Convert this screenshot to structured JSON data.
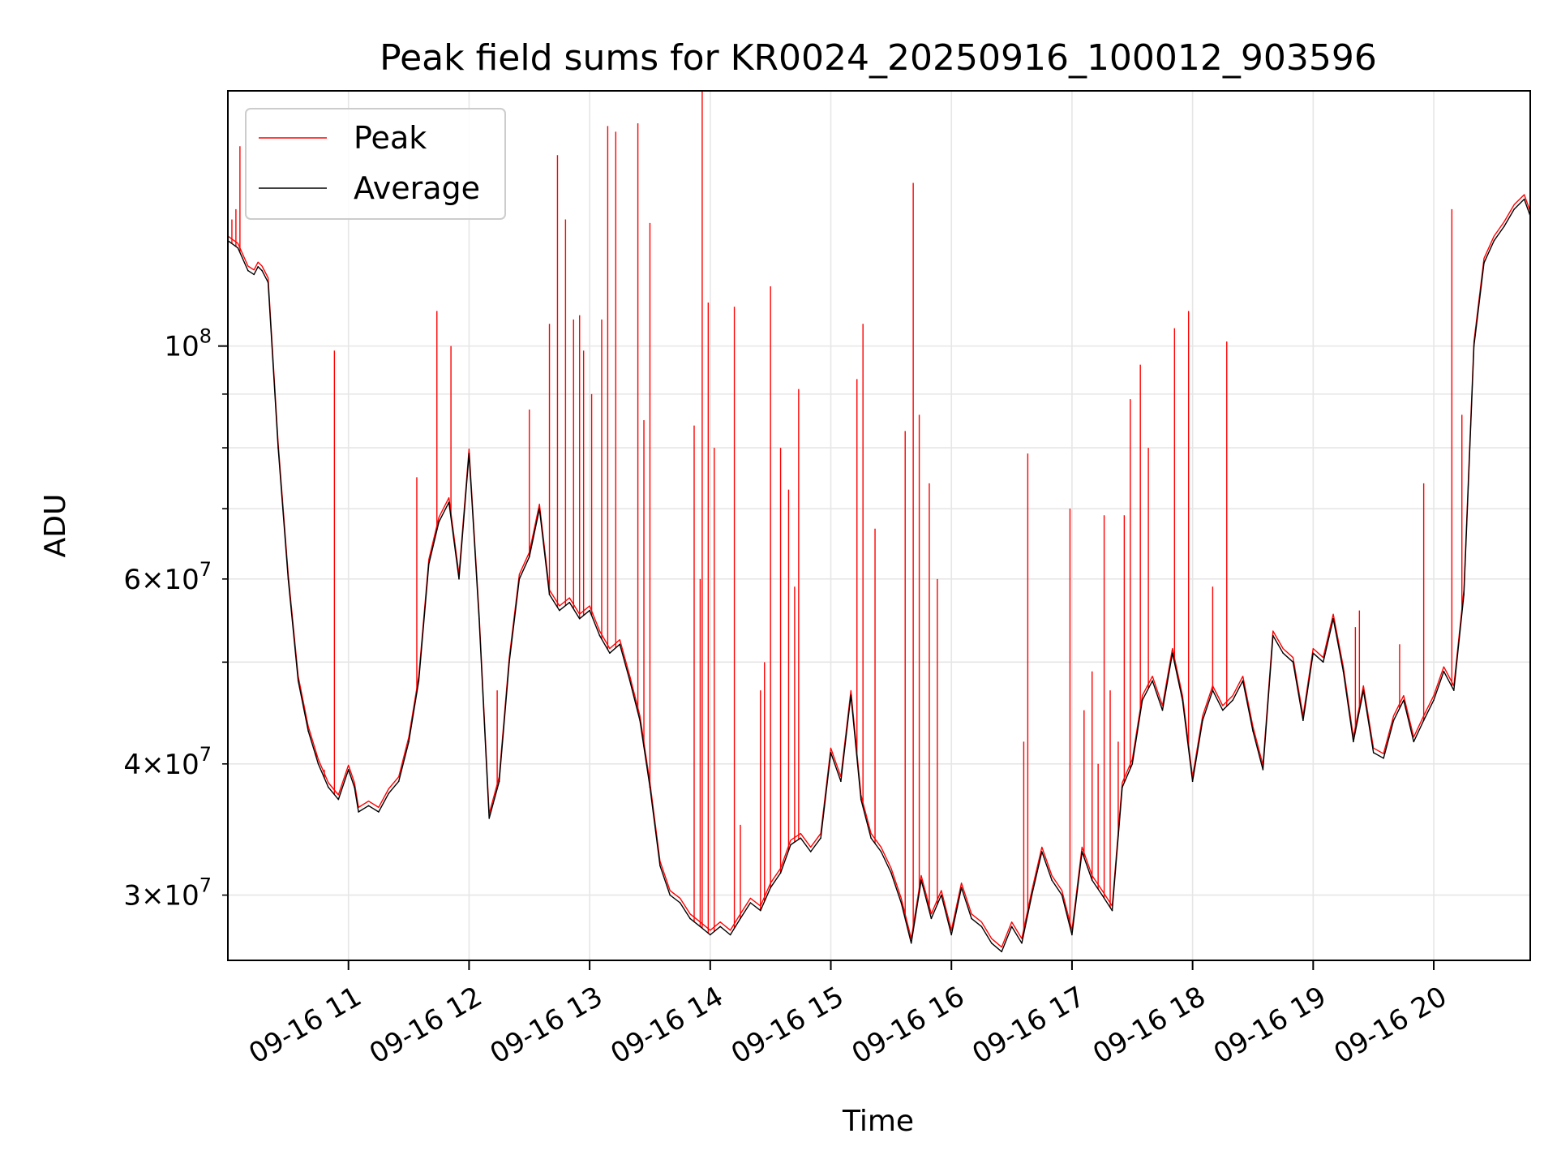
{
  "chart_data": {
    "type": "line",
    "title": "Peak field sums for KR0024_20250916_100012_903596",
    "xlabel": "Time",
    "ylabel": "ADU",
    "yscale": "log",
    "ylim": [
      26000000,
      175000000
    ],
    "xlim": [
      "2025-09-16 10:00",
      "2025-09-16 20:48"
    ],
    "grid": true,
    "legend_position": "upper-left",
    "x_ticks": [
      {
        "value": "2025-09-16 11:00",
        "label": "09-16 11"
      },
      {
        "value": "2025-09-16 12:00",
        "label": "09-16 12"
      },
      {
        "value": "2025-09-16 13:00",
        "label": "09-16 13"
      },
      {
        "value": "2025-09-16 14:00",
        "label": "09-16 14"
      },
      {
        "value": "2025-09-16 15:00",
        "label": "09-16 15"
      },
      {
        "value": "2025-09-16 16:00",
        "label": "09-16 16"
      },
      {
        "value": "2025-09-16 17:00",
        "label": "09-16 17"
      },
      {
        "value": "2025-09-16 18:00",
        "label": "09-16 18"
      },
      {
        "value": "2025-09-16 19:00",
        "label": "09-16 19"
      },
      {
        "value": "2025-09-16 20:00",
        "label": "09-16 20"
      }
    ],
    "y_major_ticks": [
      {
        "value": 100000000,
        "base": "10",
        "exp": "8"
      }
    ],
    "y_minor_ticks": [
      {
        "value": 30000000,
        "mant": "3",
        "base": "10",
        "exp": "7"
      },
      {
        "value": 40000000,
        "mant": "4",
        "base": "10",
        "exp": "7"
      },
      {
        "value": 60000000,
        "mant": "6",
        "base": "10",
        "exp": "7"
      }
    ],
    "y_minor_unlabeled": [
      50000000,
      70000000,
      80000000,
      90000000
    ],
    "series": [
      {
        "name": "Average",
        "color": "#000000",
        "x": [
          "2025-09-16 10:00",
          "2025-09-16 10:05",
          "2025-09-16 10:10",
          "2025-09-16 10:13",
          "2025-09-16 10:15",
          "2025-09-16 10:17",
          "2025-09-16 10:20",
          "2025-09-16 10:25",
          "2025-09-16 10:30",
          "2025-09-16 10:35",
          "2025-09-16 10:40",
          "2025-09-16 10:45",
          "2025-09-16 10:50",
          "2025-09-16 10:55",
          "2025-09-16 11:00",
          "2025-09-16 11:03",
          "2025-09-16 11:05",
          "2025-09-16 11:10",
          "2025-09-16 11:15",
          "2025-09-16 11:20",
          "2025-09-16 11:25",
          "2025-09-16 11:30",
          "2025-09-16 11:35",
          "2025-09-16 11:40",
          "2025-09-16 11:45",
          "2025-09-16 11:50",
          "2025-09-16 11:55",
          "2025-09-16 12:00",
          "2025-09-16 12:05",
          "2025-09-16 12:10",
          "2025-09-16 12:15",
          "2025-09-16 12:20",
          "2025-09-16 12:25",
          "2025-09-16 12:30",
          "2025-09-16 12:35",
          "2025-09-16 12:40",
          "2025-09-16 12:45",
          "2025-09-16 12:50",
          "2025-09-16 12:55",
          "2025-09-16 13:00",
          "2025-09-16 13:05",
          "2025-09-16 13:10",
          "2025-09-16 13:15",
          "2025-09-16 13:20",
          "2025-09-16 13:25",
          "2025-09-16 13:30",
          "2025-09-16 13:35",
          "2025-09-16 13:40",
          "2025-09-16 13:45",
          "2025-09-16 13:50",
          "2025-09-16 13:55",
          "2025-09-16 14:00",
          "2025-09-16 14:05",
          "2025-09-16 14:10",
          "2025-09-16 14:15",
          "2025-09-16 14:20",
          "2025-09-16 14:25",
          "2025-09-16 14:30",
          "2025-09-16 14:35",
          "2025-09-16 14:40",
          "2025-09-16 14:45",
          "2025-09-16 14:50",
          "2025-09-16 14:55",
          "2025-09-16 15:00",
          "2025-09-16 15:05",
          "2025-09-16 15:10",
          "2025-09-16 15:15",
          "2025-09-16 15:20",
          "2025-09-16 15:25",
          "2025-09-16 15:30",
          "2025-09-16 15:35",
          "2025-09-16 15:40",
          "2025-09-16 15:45",
          "2025-09-16 15:50",
          "2025-09-16 15:55",
          "2025-09-16 16:00",
          "2025-09-16 16:05",
          "2025-09-16 16:10",
          "2025-09-16 16:15",
          "2025-09-16 16:20",
          "2025-09-16 16:25",
          "2025-09-16 16:30",
          "2025-09-16 16:35",
          "2025-09-16 16:40",
          "2025-09-16 16:45",
          "2025-09-16 16:50",
          "2025-09-16 16:55",
          "2025-09-16 17:00",
          "2025-09-16 17:05",
          "2025-09-16 17:10",
          "2025-09-16 17:15",
          "2025-09-16 17:20",
          "2025-09-16 17:25",
          "2025-09-16 17:30",
          "2025-09-16 17:35",
          "2025-09-16 17:40",
          "2025-09-16 17:45",
          "2025-09-16 17:50",
          "2025-09-16 17:55",
          "2025-09-16 18:00",
          "2025-09-16 18:05",
          "2025-09-16 18:10",
          "2025-09-16 18:15",
          "2025-09-16 18:20",
          "2025-09-16 18:25",
          "2025-09-16 18:30",
          "2025-09-16 18:35",
          "2025-09-16 18:40",
          "2025-09-16 18:45",
          "2025-09-16 18:50",
          "2025-09-16 18:55",
          "2025-09-16 19:00",
          "2025-09-16 19:05",
          "2025-09-16 19:10",
          "2025-09-16 19:15",
          "2025-09-16 19:20",
          "2025-09-16 19:25",
          "2025-09-16 19:30",
          "2025-09-16 19:35",
          "2025-09-16 19:40",
          "2025-09-16 19:45",
          "2025-09-16 19:50",
          "2025-09-16 19:55",
          "2025-09-16 20:00",
          "2025-09-16 20:05",
          "2025-09-16 20:10",
          "2025-09-16 20:15",
          "2025-09-16 20:20",
          "2025-09-16 20:25",
          "2025-09-16 20:30",
          "2025-09-16 20:35",
          "2025-09-16 20:40",
          "2025-09-16 20:45",
          "2025-09-16 20:48"
        ],
        "values": [
          126000000,
          124000000,
          118000000,
          117000000,
          119000000,
          118000000,
          115000000,
          80000000,
          60000000,
          48000000,
          43000000,
          40000000,
          38000000,
          37000000,
          39500000,
          38000000,
          36000000,
          36500000,
          36000000,
          37500000,
          38500000,
          42000000,
          48000000,
          62000000,
          68000000,
          71000000,
          60000000,
          79000000,
          55000000,
          35500000,
          38500000,
          50000000,
          60000000,
          63000000,
          70000000,
          58000000,
          56000000,
          57000000,
          55000000,
          56000000,
          53000000,
          51000000,
          52000000,
          48000000,
          44000000,
          38000000,
          32000000,
          30000000,
          29500000,
          28500000,
          28000000,
          27500000,
          28000000,
          27500000,
          28500000,
          29500000,
          29000000,
          30500000,
          31500000,
          33500000,
          34000000,
          33000000,
          34000000,
          41000000,
          38500000,
          46500000,
          37000000,
          34000000,
          33000000,
          31500000,
          29500000,
          27000000,
          31000000,
          28500000,
          30000000,
          27500000,
          30500000,
          28500000,
          28000000,
          27000000,
          26500000,
          28000000,
          27000000,
          30000000,
          33000000,
          31000000,
          30000000,
          27500000,
          33000000,
          31000000,
          30000000,
          29000000,
          38000000,
          40000000,
          46000000,
          48000000,
          45000000,
          51000000,
          46000000,
          38500000,
          44000000,
          47000000,
          45000000,
          46000000,
          48000000,
          43000000,
          39500000,
          53000000,
          51000000,
          50000000,
          44000000,
          51000000,
          50000000,
          55000000,
          49000000,
          42000000,
          47000000,
          41000000,
          40500000,
          44000000,
          46000000,
          42000000,
          44000000,
          46000000,
          49000000,
          47000000,
          58000000,
          100000000,
          120000000,
          126000000,
          130000000,
          135000000,
          138000000,
          133000000
        ],
        "width": 1.4
      },
      {
        "name": "Peak",
        "color": "#ff0000",
        "spikes": [
          {
            "x": "2025-09-16 10:02",
            "y": 132000000
          },
          {
            "x": "2025-09-16 10:04",
            "y": 135000000
          },
          {
            "x": "2025-09-16 10:06",
            "y": 155000000
          },
          {
            "x": "2025-09-16 10:53",
            "y": 99000000
          },
          {
            "x": "2025-09-16 10:48",
            "y": 39500000
          },
          {
            "x": "2025-09-16 10:44",
            "y": 41000000
          },
          {
            "x": "2025-09-16 11:34",
            "y": 75000000
          },
          {
            "x": "2025-09-16 11:44",
            "y": 108000000
          },
          {
            "x": "2025-09-16 11:51",
            "y": 100000000
          },
          {
            "x": "2025-09-16 12:14",
            "y": 47000000
          },
          {
            "x": "2025-09-16 12:30",
            "y": 87000000
          },
          {
            "x": "2025-09-16 12:40",
            "y": 105000000
          },
          {
            "x": "2025-09-16 12:44",
            "y": 152000000
          },
          {
            "x": "2025-09-16 12:48",
            "y": 132000000
          },
          {
            "x": "2025-09-16 12:52",
            "y": 106000000
          },
          {
            "x": "2025-09-16 12:55",
            "y": 107000000
          },
          {
            "x": "2025-09-16 12:57",
            "y": 99000000
          },
          {
            "x": "2025-09-16 13:01",
            "y": 90000000
          },
          {
            "x": "2025-09-16 13:06",
            "y": 106000000
          },
          {
            "x": "2025-09-16 13:09",
            "y": 162000000
          },
          {
            "x": "2025-09-16 13:13",
            "y": 160000000
          },
          {
            "x": "2025-09-16 13:24",
            "y": 163000000
          },
          {
            "x": "2025-09-16 13:27",
            "y": 85000000
          },
          {
            "x": "2025-09-16 13:30",
            "y": 131000000
          },
          {
            "x": "2025-09-16 13:52",
            "y": 84000000
          },
          {
            "x": "2025-09-16 13:55",
            "y": 60000000
          },
          {
            "x": "2025-09-16 13:56",
            "y": 175000000
          },
          {
            "x": "2025-09-16 13:59",
            "y": 110000000
          },
          {
            "x": "2025-09-16 14:02",
            "y": 80000000
          },
          {
            "x": "2025-09-16 14:12",
            "y": 109000000
          },
          {
            "x": "2025-09-16 14:15",
            "y": 35000000
          },
          {
            "x": "2025-09-16 14:25",
            "y": 47000000
          },
          {
            "x": "2025-09-16 14:27",
            "y": 50000000
          },
          {
            "x": "2025-09-16 14:30",
            "y": 114000000
          },
          {
            "x": "2025-09-16 14:35",
            "y": 80000000
          },
          {
            "x": "2025-09-16 14:39",
            "y": 73000000
          },
          {
            "x": "2025-09-16 14:42",
            "y": 59000000
          },
          {
            "x": "2025-09-16 14:44",
            "y": 91000000
          },
          {
            "x": "2025-09-16 15:13",
            "y": 93000000
          },
          {
            "x": "2025-09-16 15:16",
            "y": 105000000
          },
          {
            "x": "2025-09-16 15:22",
            "y": 67000000
          },
          {
            "x": "2025-09-16 15:37",
            "y": 83000000
          },
          {
            "x": "2025-09-16 15:41",
            "y": 143000000
          },
          {
            "x": "2025-09-16 15:44",
            "y": 86000000
          },
          {
            "x": "2025-09-16 15:49",
            "y": 74000000
          },
          {
            "x": "2025-09-16 15:53",
            "y": 60000000
          },
          {
            "x": "2025-09-16 16:36",
            "y": 42000000
          },
          {
            "x": "2025-09-16 16:38",
            "y": 79000000
          },
          {
            "x": "2025-09-16 16:59",
            "y": 70000000
          },
          {
            "x": "2025-09-16 17:06",
            "y": 45000000
          },
          {
            "x": "2025-09-16 17:10",
            "y": 49000000
          },
          {
            "x": "2025-09-16 17:13",
            "y": 40000000
          },
          {
            "x": "2025-09-16 17:16",
            "y": 69000000
          },
          {
            "x": "2025-09-16 17:19",
            "y": 47000000
          },
          {
            "x": "2025-09-16 17:23",
            "y": 42000000
          },
          {
            "x": "2025-09-16 17:26",
            "y": 69000000
          },
          {
            "x": "2025-09-16 17:29",
            "y": 89000000
          },
          {
            "x": "2025-09-16 17:34",
            "y": 96000000
          },
          {
            "x": "2025-09-16 17:38",
            "y": 80000000
          },
          {
            "x": "2025-09-16 17:51",
            "y": 104000000
          },
          {
            "x": "2025-09-16 17:58",
            "y": 108000000
          },
          {
            "x": "2025-09-16 18:10",
            "y": 59000000
          },
          {
            "x": "2025-09-16 18:17",
            "y": 101000000
          },
          {
            "x": "2025-09-16 19:21",
            "y": 54000000
          },
          {
            "x": "2025-09-16 19:23",
            "y": 56000000
          },
          {
            "x": "2025-09-16 19:43",
            "y": 52000000
          },
          {
            "x": "2025-09-16 19:55",
            "y": 74000000
          },
          {
            "x": "2025-09-16 20:09",
            "y": 135000000
          },
          {
            "x": "2025-09-16 20:14",
            "y": 86000000
          }
        ],
        "width": 1.4
      }
    ]
  },
  "legend": {
    "peak_label": "Peak",
    "average_label": "Average"
  },
  "colors": {
    "peak": "#ff0000",
    "average": "#000000",
    "grid": "#e6e6e6"
  }
}
